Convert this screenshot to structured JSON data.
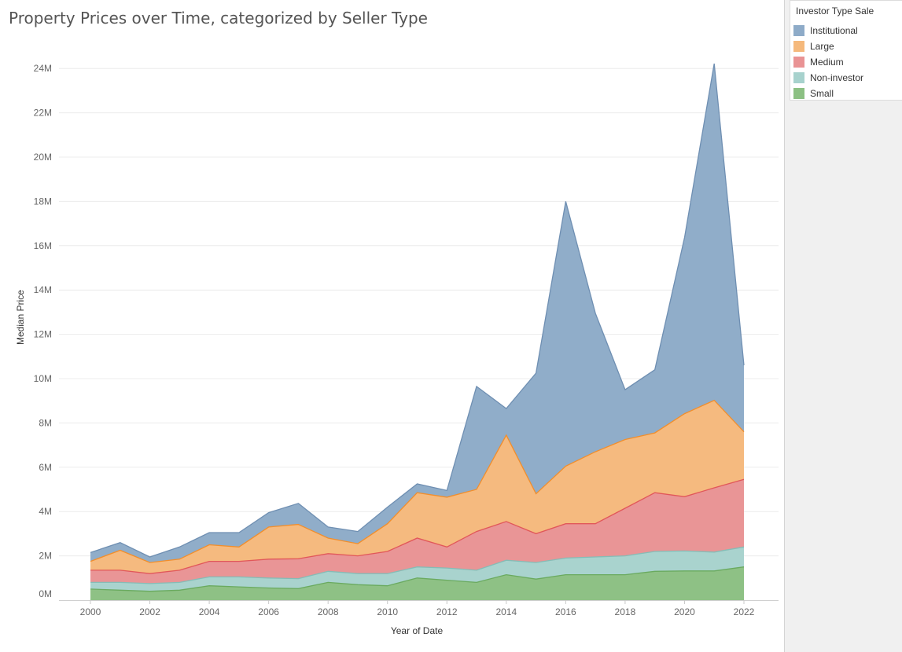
{
  "chart_data": {
    "type": "area",
    "stacked": true,
    "title": "Property Prices over Time, categorized by Seller Type",
    "xlabel": "Year of Date",
    "ylabel": "Median Price",
    "x": [
      2000,
      2001,
      2002,
      2003,
      2004,
      2005,
      2006,
      2007,
      2008,
      2009,
      2010,
      2011,
      2012,
      2013,
      2014,
      2015,
      2016,
      2017,
      2018,
      2019,
      2020,
      2021,
      2022
    ],
    "xticks": [
      "2000",
      "2002",
      "2004",
      "2006",
      "2008",
      "2010",
      "2012",
      "2014",
      "2016",
      "2018",
      "2020",
      "2022"
    ],
    "yticks": [
      "0M",
      "2M",
      "4M",
      "6M",
      "8M",
      "10M",
      "12M",
      "14M",
      "16M",
      "18M",
      "20M",
      "22M",
      "24M"
    ],
    "ylim": [
      0,
      25000000
    ],
    "grid": "horizontal",
    "legend_position": "right",
    "legend_title": "Investor Type Sale",
    "series": [
      {
        "name": "Small",
        "color": "#8cc083",
        "values": [
          500000,
          450000,
          400000,
          450000,
          650000,
          600000,
          550000,
          520000,
          800000,
          700000,
          650000,
          1000000,
          900000,
          800000,
          1150000,
          950000,
          1150000,
          1150000,
          1150000,
          1300000,
          1320000,
          1320000,
          1500000
        ]
      },
      {
        "name": "Non-investor",
        "color": "#a7d2cd",
        "values": [
          300000,
          350000,
          350000,
          350000,
          400000,
          450000,
          450000,
          450000,
          500000,
          500000,
          550000,
          500000,
          550000,
          550000,
          650000,
          750000,
          750000,
          800000,
          850000,
          900000,
          900000,
          850000,
          900000
        ]
      },
      {
        "name": "Medium",
        "color": "#e99394",
        "values": [
          550000,
          550000,
          450000,
          550000,
          700000,
          700000,
          850000,
          900000,
          800000,
          800000,
          1000000,
          1300000,
          950000,
          1750000,
          1750000,
          1300000,
          1550000,
          1500000,
          2150000,
          2650000,
          2450000,
          2900000,
          3050000
        ]
      },
      {
        "name": "Large",
        "color": "#f5b97c",
        "values": [
          400000,
          900000,
          500000,
          500000,
          750000,
          650000,
          1450000,
          1550000,
          700000,
          550000,
          1250000,
          2050000,
          2250000,
          1900000,
          3900000,
          1800000,
          2600000,
          3250000,
          3100000,
          2700000,
          3750000,
          3950000,
          2150000
        ]
      },
      {
        "name": "Institutional",
        "color": "#8eabc8",
        "values": [
          400000,
          350000,
          250000,
          550000,
          550000,
          650000,
          650000,
          950000,
          500000,
          550000,
          750000,
          400000,
          300000,
          4650000,
          1200000,
          5450000,
          11950000,
          6250000,
          2250000,
          2850000,
          7950000,
          15200000,
          3000000
        ]
      }
    ]
  }
}
